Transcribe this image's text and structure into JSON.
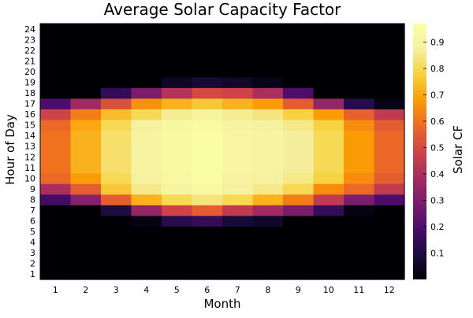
{
  "chart_data": {
    "type": "heatmap",
    "title": "Average Solar Capacity Factor",
    "xlabel": "Month",
    "ylabel": "Hour of Day",
    "colorbar_label": "Solar CF",
    "x": [
      "1",
      "2",
      "3",
      "4",
      "5",
      "6",
      "7",
      "8",
      "9",
      "10",
      "11",
      "12"
    ],
    "y": [
      "1",
      "2",
      "3",
      "4",
      "5",
      "6",
      "7",
      "8",
      "9",
      "10",
      "11",
      "12",
      "13",
      "14",
      "15",
      "16",
      "17",
      "18",
      "19",
      "20",
      "21",
      "22",
      "23",
      "24"
    ],
    "colorbar_ticks": [
      "0.1",
      "0.2",
      "0.3",
      "0.4",
      "0.5",
      "0.6",
      "0.7",
      "0.8",
      "0.9"
    ],
    "color_range": [
      0.0,
      0.97
    ],
    "colormap": "inferno",
    "values": [
      [
        0,
        0,
        0,
        0,
        0,
        0,
        0,
        0,
        0,
        0,
        0,
        0
      ],
      [
        0,
        0,
        0,
        0,
        0,
        0,
        0,
        0,
        0,
        0,
        0,
        0
      ],
      [
        0,
        0,
        0,
        0,
        0,
        0,
        0,
        0,
        0,
        0,
        0,
        0
      ],
      [
        0,
        0,
        0,
        0,
        0,
        0,
        0,
        0,
        0,
        0,
        0,
        0
      ],
      [
        0,
        0,
        0,
        0,
        0,
        0,
        0,
        0,
        0,
        0,
        0,
        0
      ],
      [
        0,
        0,
        0,
        0.02,
        0.12,
        0.15,
        0.08,
        0.06,
        0,
        0,
        0,
        0
      ],
      [
        0,
        0,
        0.1,
        0.35,
        0.48,
        0.55,
        0.45,
        0.38,
        0.3,
        0.15,
        0.02,
        0
      ],
      [
        0.18,
        0.32,
        0.55,
        0.72,
        0.8,
        0.84,
        0.8,
        0.72,
        0.62,
        0.45,
        0.3,
        0.2
      ],
      [
        0.4,
        0.55,
        0.76,
        0.85,
        0.9,
        0.93,
        0.88,
        0.85,
        0.8,
        0.65,
        0.58,
        0.45
      ],
      [
        0.58,
        0.68,
        0.8,
        0.88,
        0.92,
        0.95,
        0.9,
        0.88,
        0.85,
        0.78,
        0.65,
        0.55
      ],
      [
        0.6,
        0.72,
        0.82,
        0.89,
        0.93,
        0.96,
        0.91,
        0.89,
        0.87,
        0.8,
        0.68,
        0.58
      ],
      [
        0.6,
        0.72,
        0.82,
        0.89,
        0.93,
        0.96,
        0.91,
        0.89,
        0.87,
        0.8,
        0.68,
        0.58
      ],
      [
        0.6,
        0.72,
        0.82,
        0.89,
        0.93,
        0.96,
        0.91,
        0.89,
        0.87,
        0.8,
        0.68,
        0.58
      ],
      [
        0.6,
        0.72,
        0.82,
        0.89,
        0.93,
        0.96,
        0.91,
        0.89,
        0.87,
        0.8,
        0.68,
        0.58
      ],
      [
        0.58,
        0.7,
        0.8,
        0.88,
        0.92,
        0.94,
        0.9,
        0.88,
        0.85,
        0.78,
        0.65,
        0.55
      ],
      [
        0.48,
        0.62,
        0.74,
        0.8,
        0.86,
        0.9,
        0.86,
        0.84,
        0.78,
        0.68,
        0.56,
        0.45
      ],
      [
        0.2,
        0.38,
        0.52,
        0.66,
        0.72,
        0.76,
        0.72,
        0.68,
        0.55,
        0.35,
        0.12,
        0.03
      ],
      [
        0,
        0,
        0.15,
        0.3,
        0.42,
        0.5,
        0.48,
        0.4,
        0.2,
        0,
        0,
        0
      ],
      [
        0,
        0,
        0,
        0,
        0.05,
        0.08,
        0.06,
        0.03,
        0,
        0,
        0,
        0
      ],
      [
        0,
        0,
        0,
        0,
        0,
        0,
        0,
        0,
        0,
        0,
        0,
        0
      ],
      [
        0,
        0,
        0,
        0,
        0,
        0,
        0,
        0,
        0,
        0,
        0,
        0
      ],
      [
        0,
        0,
        0,
        0,
        0,
        0,
        0,
        0,
        0,
        0,
        0,
        0
      ],
      [
        0,
        0,
        0,
        0,
        0,
        0,
        0,
        0,
        0,
        0,
        0,
        0
      ],
      [
        0,
        0,
        0,
        0,
        0,
        0,
        0,
        0,
        0,
        0,
        0,
        0
      ]
    ]
  }
}
